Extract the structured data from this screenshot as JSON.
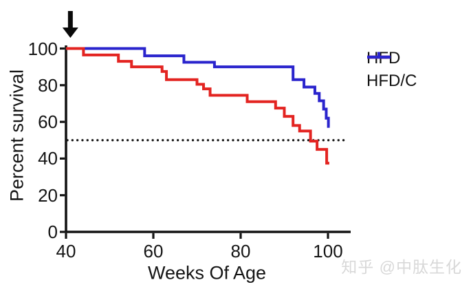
{
  "chart_data": {
    "type": "line",
    "subtype": "kaplan-meier-step",
    "title": "",
    "xlabel": "Weeks Of Age",
    "ylabel": "Percent survival",
    "x_ticks": [
      40,
      60,
      80,
      100
    ],
    "y_ticks": [
      0,
      20,
      40,
      60,
      80,
      100
    ],
    "xlim": [
      40,
      105
    ],
    "ylim": [
      0,
      100
    ],
    "grid": false,
    "legend_position": "right-of-plot",
    "series": [
      {
        "name": "HFD",
        "color": "#e32421",
        "points": [
          [
            40,
            100
          ],
          [
            44,
            96.5
          ],
          [
            52,
            93
          ],
          [
            55,
            90
          ],
          [
            62,
            87.5
          ],
          [
            63,
            83
          ],
          [
            70,
            80.5
          ],
          [
            71.5,
            78
          ],
          [
            73,
            74.5
          ],
          [
            81.5,
            71
          ],
          [
            88,
            67.5
          ],
          [
            90,
            63
          ],
          [
            92,
            58
          ],
          [
            93.5,
            55
          ],
          [
            96,
            49.5
          ],
          [
            97.5,
            45
          ],
          [
            99.7,
            37.5
          ]
        ],
        "end_week": 100.3
      },
      {
        "name": "HFD/C",
        "color": "#2a24cd",
        "points": [
          [
            40,
            100
          ],
          [
            58,
            96
          ],
          [
            67,
            92.5
          ],
          [
            74,
            90
          ],
          [
            92,
            83
          ],
          [
            94.5,
            79
          ],
          [
            97,
            75.5
          ],
          [
            98,
            71.5
          ],
          [
            99,
            67
          ],
          [
            99.6,
            62
          ],
          [
            100.1,
            57.5
          ]
        ],
        "end_week": 100.4
      }
    ],
    "reference_line": {
      "y": 50,
      "style": "dotted",
      "color": "#141414"
    },
    "annotation": {
      "type": "down-arrow",
      "x_week": 41,
      "color": "#0a0a0a"
    },
    "axis_color": "#141414"
  },
  "legend": {
    "items": [
      {
        "label": "HFD",
        "color": "#e32421"
      },
      {
        "label": "HFD/C",
        "color": "#2a24cd"
      }
    ]
  },
  "watermark": {
    "text": "知乎 @中肽生化",
    "color": "#d8d8d8"
  }
}
